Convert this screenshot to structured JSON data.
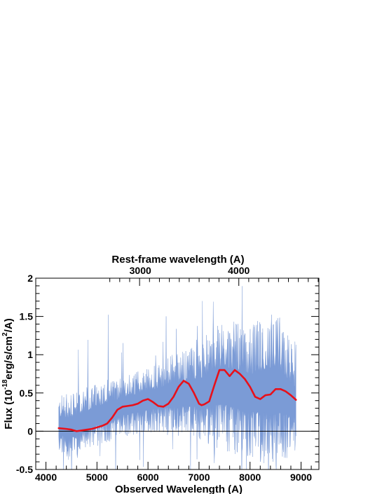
{
  "chart_data": {
    "type": "line",
    "title": "",
    "xlabel": "Observed Wavelength (A)",
    "ylabel_parts": [
      "Flux (10",
      "-18",
      "erg/s/cm",
      "2",
      "/A)"
    ],
    "top_axis_label": "Rest-frame wavelength (A)",
    "xlim": [
      3800,
      9350
    ],
    "ylim": [
      -0.5,
      2.0
    ],
    "x_ticks": [
      4000,
      5000,
      6000,
      7000,
      8000,
      9000
    ],
    "y_ticks": [
      "-0.5",
      "0",
      "0.5",
      "1",
      "1.5",
      "2"
    ],
    "y_tick_values": [
      -0.5,
      0,
      0.5,
      1,
      1.5,
      2
    ],
    "top_ticks": [
      {
        "label": "3000",
        "observed": 5850
      },
      {
        "label": "4000",
        "observed": 7780
      }
    ],
    "zero_line": 0,
    "grid": false,
    "colors": {
      "noisy_spectrum": "#7b9bd6",
      "smoothed_fit": "#e8101a"
    },
    "series": [
      {
        "role": "noisy_spectrum",
        "x_range": [
          4250,
          8900
        ],
        "band_lower": [
          [
            4250,
            -0.25
          ],
          [
            4500,
            -0.3
          ],
          [
            5000,
            -0.15
          ],
          [
            5500,
            0.0
          ],
          [
            6000,
            0.05
          ],
          [
            6500,
            0.05
          ],
          [
            7000,
            0.0
          ],
          [
            7500,
            -0.1
          ],
          [
            8000,
            -0.2
          ],
          [
            8500,
            -0.3
          ],
          [
            8900,
            -0.15
          ]
        ],
        "band_upper": [
          [
            4250,
            0.4
          ],
          [
            4500,
            0.4
          ],
          [
            5000,
            0.55
          ],
          [
            5500,
            0.65
          ],
          [
            6000,
            0.75
          ],
          [
            6500,
            0.9
          ],
          [
            7000,
            1.0
          ],
          [
            7500,
            1.3
          ],
          [
            8000,
            1.2
          ],
          [
            8500,
            1.4
          ],
          [
            8900,
            0.9
          ]
        ]
      },
      {
        "role": "smoothed_fit",
        "points": [
          [
            4250,
            0.04
          ],
          [
            4400,
            0.03
          ],
          [
            4500,
            0.02
          ],
          [
            4600,
            0.0
          ],
          [
            4700,
            0.01
          ],
          [
            4800,
            0.02
          ],
          [
            4900,
            0.03
          ],
          [
            5000,
            0.05
          ],
          [
            5100,
            0.07
          ],
          [
            5200,
            0.1
          ],
          [
            5300,
            0.18
          ],
          [
            5400,
            0.28
          ],
          [
            5500,
            0.32
          ],
          [
            5600,
            0.33
          ],
          [
            5700,
            0.34
          ],
          [
            5800,
            0.36
          ],
          [
            5900,
            0.4
          ],
          [
            6000,
            0.42
          ],
          [
            6100,
            0.38
          ],
          [
            6200,
            0.33
          ],
          [
            6300,
            0.32
          ],
          [
            6400,
            0.36
          ],
          [
            6500,
            0.45
          ],
          [
            6600,
            0.58
          ],
          [
            6700,
            0.66
          ],
          [
            6800,
            0.62
          ],
          [
            6900,
            0.5
          ],
          [
            7000,
            0.36
          ],
          [
            7050,
            0.34
          ],
          [
            7100,
            0.35
          ],
          [
            7200,
            0.39
          ],
          [
            7300,
            0.6
          ],
          [
            7400,
            0.8
          ],
          [
            7500,
            0.8
          ],
          [
            7600,
            0.72
          ],
          [
            7700,
            0.8
          ],
          [
            7800,
            0.75
          ],
          [
            7900,
            0.68
          ],
          [
            8000,
            0.58
          ],
          [
            8100,
            0.45
          ],
          [
            8200,
            0.42
          ],
          [
            8300,
            0.47
          ],
          [
            8400,
            0.48
          ],
          [
            8500,
            0.55
          ],
          [
            8600,
            0.55
          ],
          [
            8700,
            0.52
          ],
          [
            8800,
            0.47
          ],
          [
            8900,
            0.41
          ]
        ]
      }
    ]
  }
}
